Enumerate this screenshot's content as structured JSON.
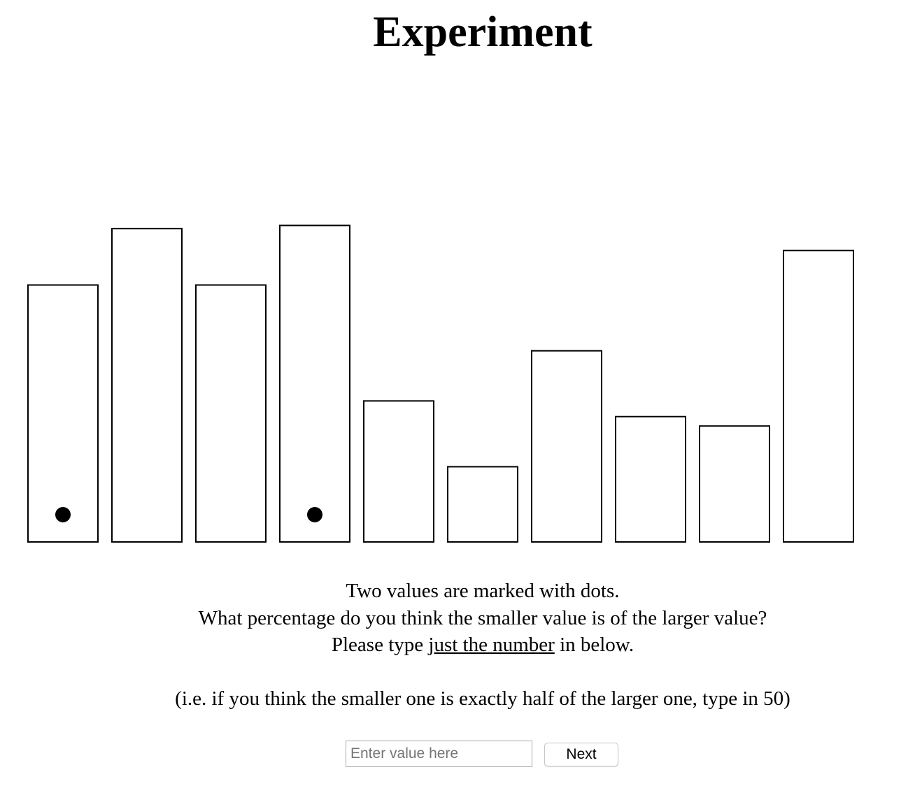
{
  "page": {
    "title": "Experiment"
  },
  "chart_data": {
    "type": "bar",
    "categories": [
      "",
      "",
      "",
      "",
      "",
      "",
      "",
      "",
      "",
      ""
    ],
    "values": [
      82,
      100,
      82,
      101,
      45,
      24,
      61,
      40,
      37,
      93
    ],
    "marked_indices": [
      0,
      3
    ],
    "ylim": [
      0,
      106
    ],
    "title": "",
    "xlabel": "",
    "ylabel": "",
    "grid": false,
    "axes_visible": false,
    "bar_fill": "#ffffff",
    "bar_stroke": "#000000",
    "marker_color": "#000000"
  },
  "instructions": {
    "line1": "Two values are marked with dots.",
    "line2": "What percentage do you think the smaller value is of the larger value?",
    "line3_before": "Please type ",
    "line3_emphasis": "just the number",
    "line3_after": " in below.",
    "example": "(i.e. if you think the smaller one is exactly half of the larger one, type in 50)"
  },
  "form": {
    "input_value": "",
    "input_placeholder": "Enter value here",
    "next_label": "Next"
  }
}
